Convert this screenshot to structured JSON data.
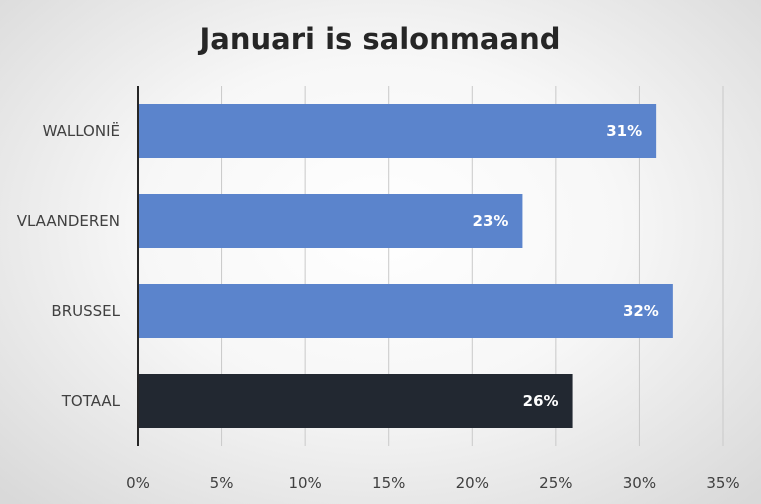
{
  "chart_data": {
    "type": "bar",
    "orientation": "horizontal",
    "title": "Januari is salonmaand",
    "categories": [
      "WALLONIË",
      "VLAANDEREN",
      "BRUSSEL",
      "TOTAAL"
    ],
    "values": [
      31,
      23,
      32,
      26
    ],
    "value_labels": [
      "31%",
      "23%",
      "32%",
      "26%"
    ],
    "bar_colors": [
      "#5b84cc",
      "#5b84cc",
      "#5b84cc",
      "#222831"
    ],
    "x_ticks": [
      "0%",
      "5%",
      "10%",
      "15%",
      "20%",
      "25%",
      "30%",
      "35%"
    ],
    "xlim": [
      0,
      35
    ],
    "xlabel": "",
    "ylabel": "",
    "grid": "vertical",
    "legend": "none"
  },
  "colors": {
    "bar_primary": "#5b84cc",
    "bar_total": "#222831",
    "gridline": "#c9c9c9",
    "axis_line": "#262626"
  }
}
